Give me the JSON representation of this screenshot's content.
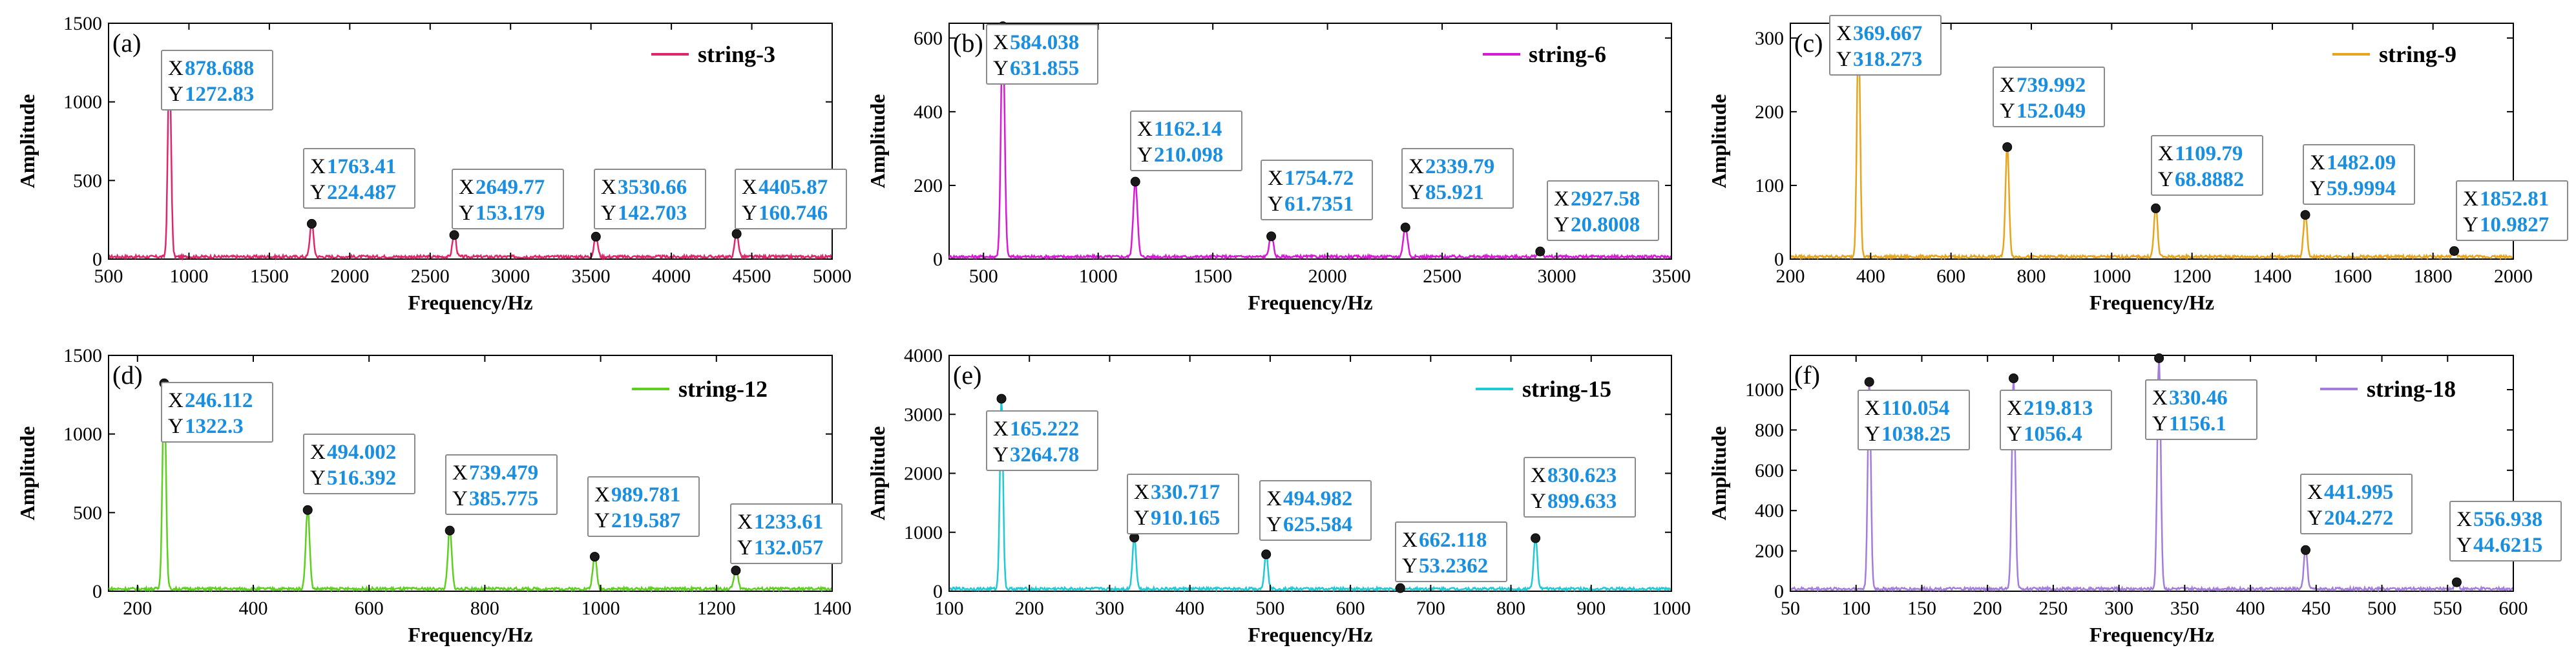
{
  "figure": {
    "panels": [
      {
        "label": "(a)",
        "xlabel": "Frequency/Hz",
        "ylabel": "Amplitude"
      },
      {
        "label": "(b)",
        "xlabel": "Frequency/Hz",
        "ylabel": "Amplitude"
      },
      {
        "label": "(c)",
        "xlabel": "Frequency/Hz",
        "ylabel": "Amplitude"
      },
      {
        "label": "(d)",
        "xlabel": "Frequency/Hz",
        "ylabel": "Amplitude"
      },
      {
        "label": "(e)",
        "xlabel": "Frequency/Hz",
        "ylabel": "Amplitude"
      },
      {
        "label": "(f)",
        "xlabel": "Frequency/Hz",
        "ylabel": "Amplitude"
      }
    ]
  },
  "chart_data": [
    {
      "type": "line",
      "label": "(a)",
      "series_name": "string-3",
      "color": "#e0266b",
      "xlabel": "Frequency/Hz",
      "ylabel": "Amplitude",
      "xlim": [
        500,
        5000
      ],
      "ylim": [
        0,
        1500
      ],
      "xticks": [
        500,
        1000,
        1500,
        2000,
        2500,
        3000,
        3500,
        4000,
        4500,
        5000
      ],
      "yticks": [
        0,
        500,
        1000,
        1500
      ],
      "peak_width": 10,
      "peaks": [
        {
          "x": 878.688,
          "y": 1272.83,
          "xs": "878.688",
          "ys": "1272.83"
        },
        {
          "x": 1763.41,
          "y": 224.487,
          "xs": "1763.41",
          "ys": "224.487"
        },
        {
          "x": 2649.77,
          "y": 153.179,
          "xs": "2649.77",
          "ys": "153.179"
        },
        {
          "x": 3530.66,
          "y": 142.703,
          "xs": "3530.66",
          "ys": "142.703"
        },
        {
          "x": 4405.87,
          "y": 160.746,
          "xs": "4405.87",
          "ys": "160.746"
        }
      ]
    },
    {
      "type": "line",
      "label": "(b)",
      "series_name": "string-6",
      "color": "#d61ad6",
      "xlabel": "Frequency/Hz",
      "ylabel": "Amplitude",
      "xlim": [
        350,
        3500
      ],
      "ylim": [
        0,
        640
      ],
      "xticks": [
        500,
        1000,
        1500,
        2000,
        2500,
        3000,
        3500
      ],
      "yticks": [
        0,
        200,
        400,
        600
      ],
      "peak_width": 8,
      "peaks": [
        {
          "x": 584.038,
          "y": 631.855,
          "xs": "584.038",
          "ys": "631.855"
        },
        {
          "x": 1162.14,
          "y": 210.098,
          "xs": "1162.14",
          "ys": "210.098"
        },
        {
          "x": 1754.72,
          "y": 61.7351,
          "xs": "1754.72",
          "ys": "61.7351"
        },
        {
          "x": 2339.79,
          "y": 85.921,
          "xs": "2339.79",
          "ys": "85.921"
        },
        {
          "x": 2927.58,
          "y": 20.8008,
          "xs": "2927.58",
          "ys": "20.8008"
        }
      ]
    },
    {
      "type": "line",
      "label": "(c)",
      "series_name": "string-9",
      "color": "#e8a41c",
      "xlabel": "Frequency/Hz",
      "ylabel": "Amplitude",
      "xlim": [
        200,
        2000
      ],
      "ylim": [
        0,
        320
      ],
      "xticks": [
        200,
        400,
        600,
        800,
        1000,
        1200,
        1400,
        1600,
        1800,
        2000
      ],
      "yticks": [
        0,
        100,
        200,
        300
      ],
      "peak_width": 4,
      "peaks": [
        {
          "x": 369.667,
          "y": 318.273,
          "xs": "369.667",
          "ys": "318.273"
        },
        {
          "x": 739.992,
          "y": 152.049,
          "xs": "739.992",
          "ys": "152.049"
        },
        {
          "x": 1109.79,
          "y": 68.8882,
          "xs": "1109.79",
          "ys": "68.8882"
        },
        {
          "x": 1482.09,
          "y": 59.9994,
          "xs": "1482.09",
          "ys": "59.9994"
        },
        {
          "x": 1852.81,
          "y": 10.9827,
          "xs": "1852.81",
          "ys": "10.9827"
        }
      ]
    },
    {
      "type": "line",
      "label": "(d)",
      "series_name": "string-12",
      "color": "#5ccf1f",
      "xlabel": "Frequency/Hz",
      "ylabel": "Amplitude",
      "xlim": [
        150,
        1400
      ],
      "ylim": [
        0,
        1500
      ],
      "xticks": [
        200,
        400,
        600,
        800,
        1000,
        1200,
        1400
      ],
      "yticks": [
        0,
        500,
        1000,
        1500
      ],
      "peak_width": 3,
      "peaks": [
        {
          "x": 246.112,
          "y": 1322.3,
          "xs": "246.112",
          "ys": "1322.3"
        },
        {
          "x": 494.002,
          "y": 516.392,
          "xs": "494.002",
          "ys": "516.392"
        },
        {
          "x": 739.479,
          "y": 385.775,
          "xs": "739.479",
          "ys": "385.775"
        },
        {
          "x": 989.781,
          "y": 219.587,
          "xs": "989.781",
          "ys": "219.587"
        },
        {
          "x": 1233.61,
          "y": 132.057,
          "xs": "1233.61",
          "ys": "132.057"
        }
      ]
    },
    {
      "type": "line",
      "label": "(e)",
      "series_name": "string-15",
      "color": "#1fc9d6",
      "xlabel": "Frequency/Hz",
      "ylabel": "Amplitude",
      "xlim": [
        100,
        1000
      ],
      "ylim": [
        0,
        4000
      ],
      "xticks": [
        100,
        200,
        300,
        400,
        500,
        600,
        700,
        800,
        900,
        1000
      ],
      "yticks": [
        0,
        1000,
        2000,
        3000,
        4000
      ],
      "peak_width": 2,
      "peaks": [
        {
          "x": 165.222,
          "y": 3264.78,
          "xs": "165.222",
          "ys": "3264.78"
        },
        {
          "x": 330.717,
          "y": 910.165,
          "xs": "330.717",
          "ys": "910.165"
        },
        {
          "x": 494.982,
          "y": 625.584,
          "xs": "494.982",
          "ys": "625.584"
        },
        {
          "x": 662.118,
          "y": 53.2362,
          "xs": "662.118",
          "ys": "53.2362"
        },
        {
          "x": 830.623,
          "y": 899.633,
          "xs": "830.623",
          "ys": "899.633"
        }
      ]
    },
    {
      "type": "line",
      "label": "(f)",
      "series_name": "string-18",
      "color": "#a37ddb",
      "xlabel": "Frequency/Hz",
      "ylabel": "Amplitude",
      "xlim": [
        50,
        600
      ],
      "ylim": [
        0,
        1170
      ],
      "xticks": [
        50,
        100,
        150,
        200,
        250,
        300,
        350,
        400,
        450,
        500,
        550,
        600
      ],
      "yticks": [
        0,
        200,
        400,
        600,
        800,
        1000
      ],
      "peak_width": 1.2,
      "peaks": [
        {
          "x": 110.054,
          "y": 1038.25,
          "xs": "110.054",
          "ys": "1038.25"
        },
        {
          "x": 219.813,
          "y": 1056.4,
          "xs": "219.813",
          "ys": "1056.4"
        },
        {
          "x": 330.46,
          "y": 1156.1,
          "xs": "330.46",
          "ys": "1156.1"
        },
        {
          "x": 441.995,
          "y": 204.272,
          "xs": "441.995",
          "ys": "204.272"
        },
        {
          "x": 556.938,
          "y": 44.6215,
          "xs": "556.938",
          "ys": "44.6215"
        }
      ]
    }
  ]
}
